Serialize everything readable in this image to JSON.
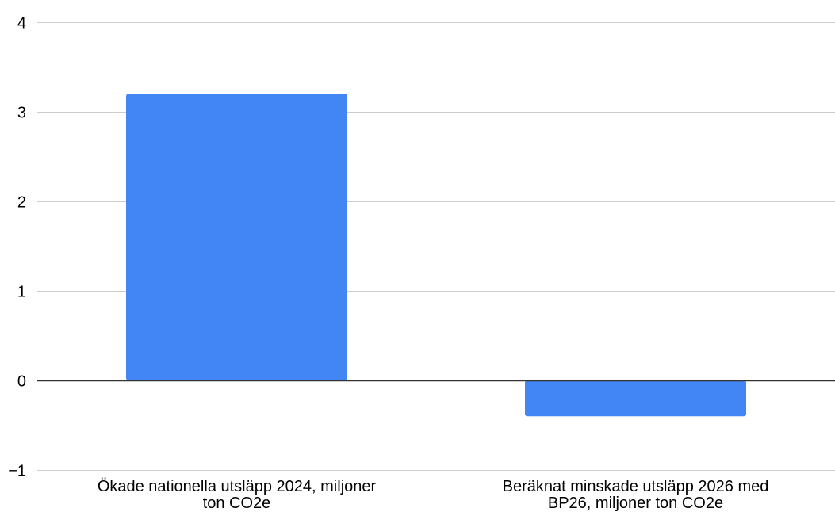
{
  "chart_data": {
    "type": "bar",
    "title": "",
    "xlabel": "",
    "ylabel": "",
    "categories": [
      "Ökade nationella utsläpp 2024, miljoner ton CO2e",
      "Beräknat minskade utsläpp 2026 med BP26, miljoner ton CO2e"
    ],
    "category_lines": [
      [
        "Ökade nationella utsläpp 2024, miljoner",
        "ton CO2e"
      ],
      [
        "Beräknat minskade utsläpp 2026 med",
        "BP26, miljoner ton CO2e"
      ]
    ],
    "values": [
      3.2,
      -0.4
    ],
    "ylim": [
      -1,
      4
    ],
    "yticks": [
      4,
      3,
      2,
      1,
      0,
      -1
    ],
    "ytick_labels": [
      "4",
      "3",
      "2",
      "1",
      "0",
      "−1"
    ],
    "grid": true,
    "legend": "none",
    "colors": {
      "bar": "#4285f4",
      "grid": "#cccccc",
      "zero_line": "#333333",
      "text": "#000000"
    }
  }
}
